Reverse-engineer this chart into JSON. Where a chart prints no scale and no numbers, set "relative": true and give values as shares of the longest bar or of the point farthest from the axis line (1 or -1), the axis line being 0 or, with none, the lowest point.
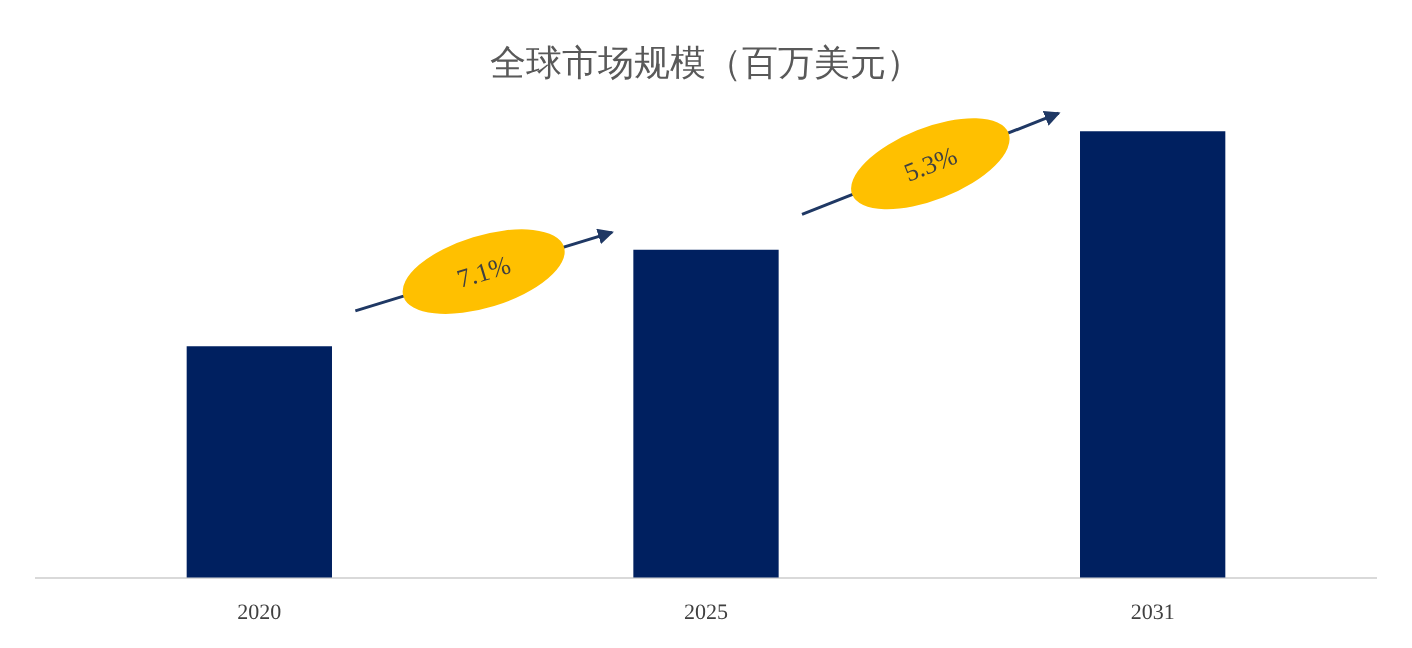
{
  "chart_data": {
    "type": "bar",
    "title": "全球市场规模（百万美元）",
    "categories": [
      "2020",
      "2025",
      "2031"
    ],
    "values": [
      0.517,
      0.733,
      1
    ],
    "color": "#002060",
    "relative": true,
    "annotations": [
      "7.1%",
      "5.3%"
    ]
  }
}
